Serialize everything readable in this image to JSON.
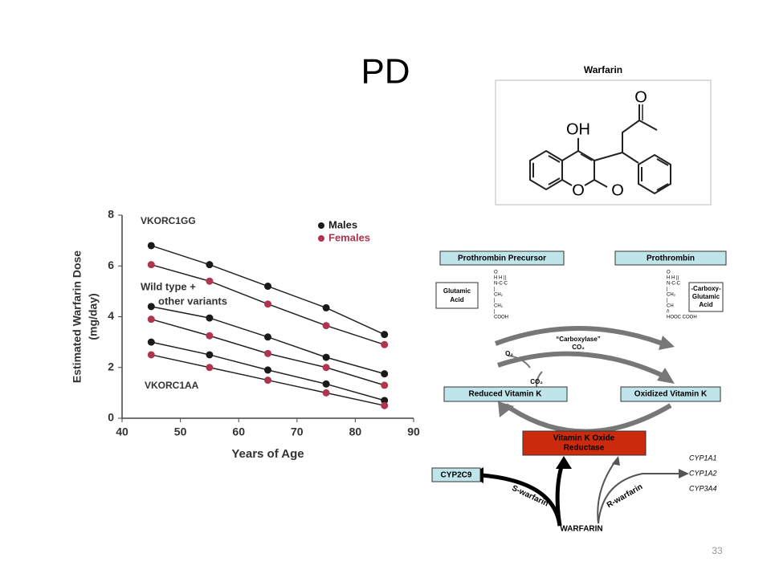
{
  "slide": {
    "title": "PD",
    "page_number": "33"
  },
  "chart_data": {
    "type": "line",
    "x_label": "Years of Age",
    "y_label": [
      "Estimated Warfarin Dose",
      "(mg/day)"
    ],
    "x": [
      45,
      55,
      65,
      75,
      85
    ],
    "xlim": [
      40,
      90
    ],
    "xticks": [
      40,
      50,
      60,
      70,
      80,
      90
    ],
    "ylim": [
      0,
      8
    ],
    "yticks": [
      0,
      2,
      4,
      6,
      8
    ],
    "legend_position": "upper right",
    "annotations": [
      "VKORC1GG",
      [
        "Wild type +",
        "other variants"
      ],
      "VKORC1AA"
    ],
    "series": [
      {
        "name": "Males",
        "color": "#1a1a1a",
        "values": [
          6.8,
          6.05,
          5.2,
          4.35,
          3.3
        ]
      },
      {
        "name": "Females",
        "color": "#b0344d",
        "values": [
          6.05,
          5.4,
          4.5,
          3.65,
          2.9
        ]
      },
      {
        "name": "Males",
        "color": "#1a1a1a",
        "values": [
          4.4,
          3.95,
          3.2,
          2.4,
          1.75
        ]
      },
      {
        "name": "Females",
        "color": "#b0344d",
        "values": [
          3.9,
          3.25,
          2.55,
          2.0,
          1.3
        ]
      },
      {
        "name": "Males",
        "color": "#1a1a1a",
        "values": [
          3.0,
          2.5,
          1.9,
          1.35,
          0.7
        ]
      },
      {
        "name": "Females",
        "color": "#b0344d",
        "values": [
          2.5,
          2.0,
          1.5,
          1.0,
          0.5
        ]
      }
    ]
  },
  "structure": {
    "title": "Warfarin",
    "atoms": [
      "O",
      "OH",
      "O",
      "O"
    ]
  },
  "pathway": {
    "precursor": "Prothrombin Precursor",
    "product": "Prothrombin",
    "glutamic": [
      "Glutamic",
      "Acid"
    ],
    "carboxy": [
      "-Carboxy-",
      "Glutamic",
      "Acid"
    ],
    "formula_left": [
      "O",
      "H H ||",
      "N-C-C",
      "|",
      "CH₂",
      "|",
      "CH₂",
      "|",
      "COOH"
    ],
    "formula_right": [
      "O",
      "H H ||",
      "N-C-C",
      "|",
      "CH₂",
      "|",
      "CH",
      "/\\",
      "HOOC COOH"
    ],
    "carboxylase": [
      "“Carboxylase”",
      "CO₂"
    ],
    "o2": "O₂",
    "co2": "CO₂",
    "reduced": "Reduced Vitamin K",
    "oxidized": "Oxidized Vitamin K",
    "reductase": [
      "Vitamin K Oxide",
      "Reductase"
    ],
    "cyp2c9": "CYP2C9",
    "cyps": [
      "CYP1A1",
      "CYP1A2",
      "CYP3A4"
    ],
    "s_warfarin": "S-warfarin",
    "r_warfarin": "R-warfarin",
    "warfarin": "WARFARIN"
  }
}
